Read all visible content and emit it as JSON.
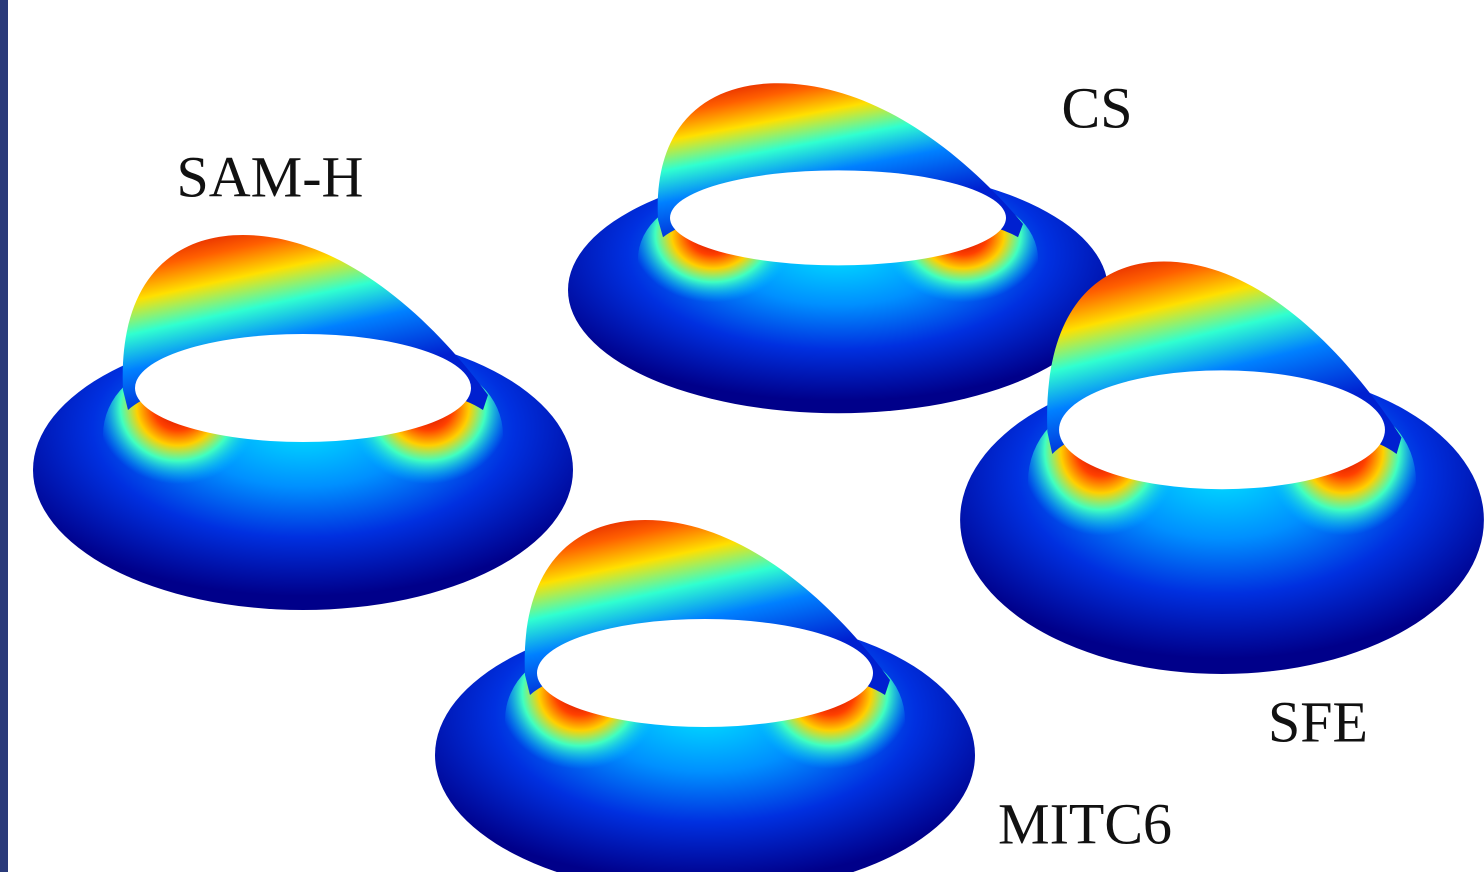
{
  "figures": [
    {
      "label": "SAM-H"
    },
    {
      "label": "CS"
    },
    {
      "label": "SFE"
    },
    {
      "label": "MITC6"
    }
  ]
}
